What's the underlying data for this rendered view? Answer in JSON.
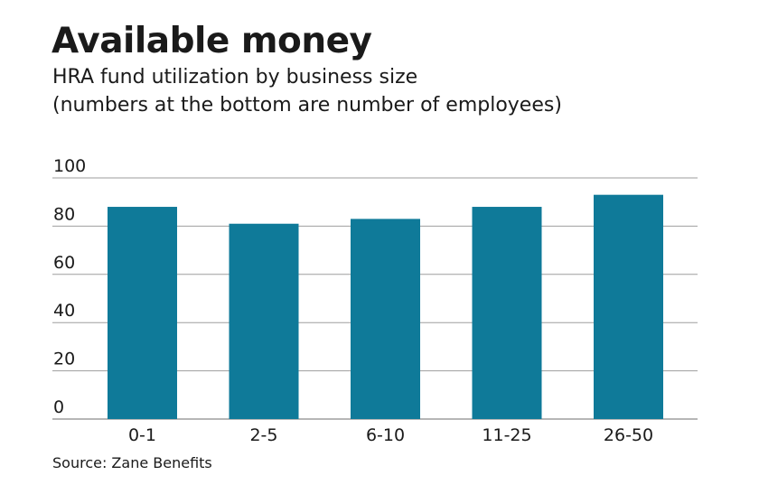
{
  "header": {
    "title": "Available money",
    "subtitle_line1": "HRA fund utilization by business size",
    "subtitle_line2": "(numbers at the bottom are number of employees)"
  },
  "source": "Source: Zane Benefits",
  "chart_data": {
    "type": "bar",
    "title": "Available money",
    "subtitle": "HRA fund utilization by business size (numbers at the bottom are number of employees)",
    "categories": [
      "0-1",
      "2-5",
      "6-10",
      "11-25",
      "26-50"
    ],
    "values": [
      88,
      81,
      83,
      88,
      93
    ],
    "xlabel": "",
    "ylabel": "",
    "ylim": [
      0,
      100
    ],
    "yticks": [
      0,
      20,
      40,
      60,
      80,
      100
    ],
    "grid": true,
    "legend": "none",
    "bar_color": "#0f7a99",
    "grid_color": "#9e9e9e"
  }
}
